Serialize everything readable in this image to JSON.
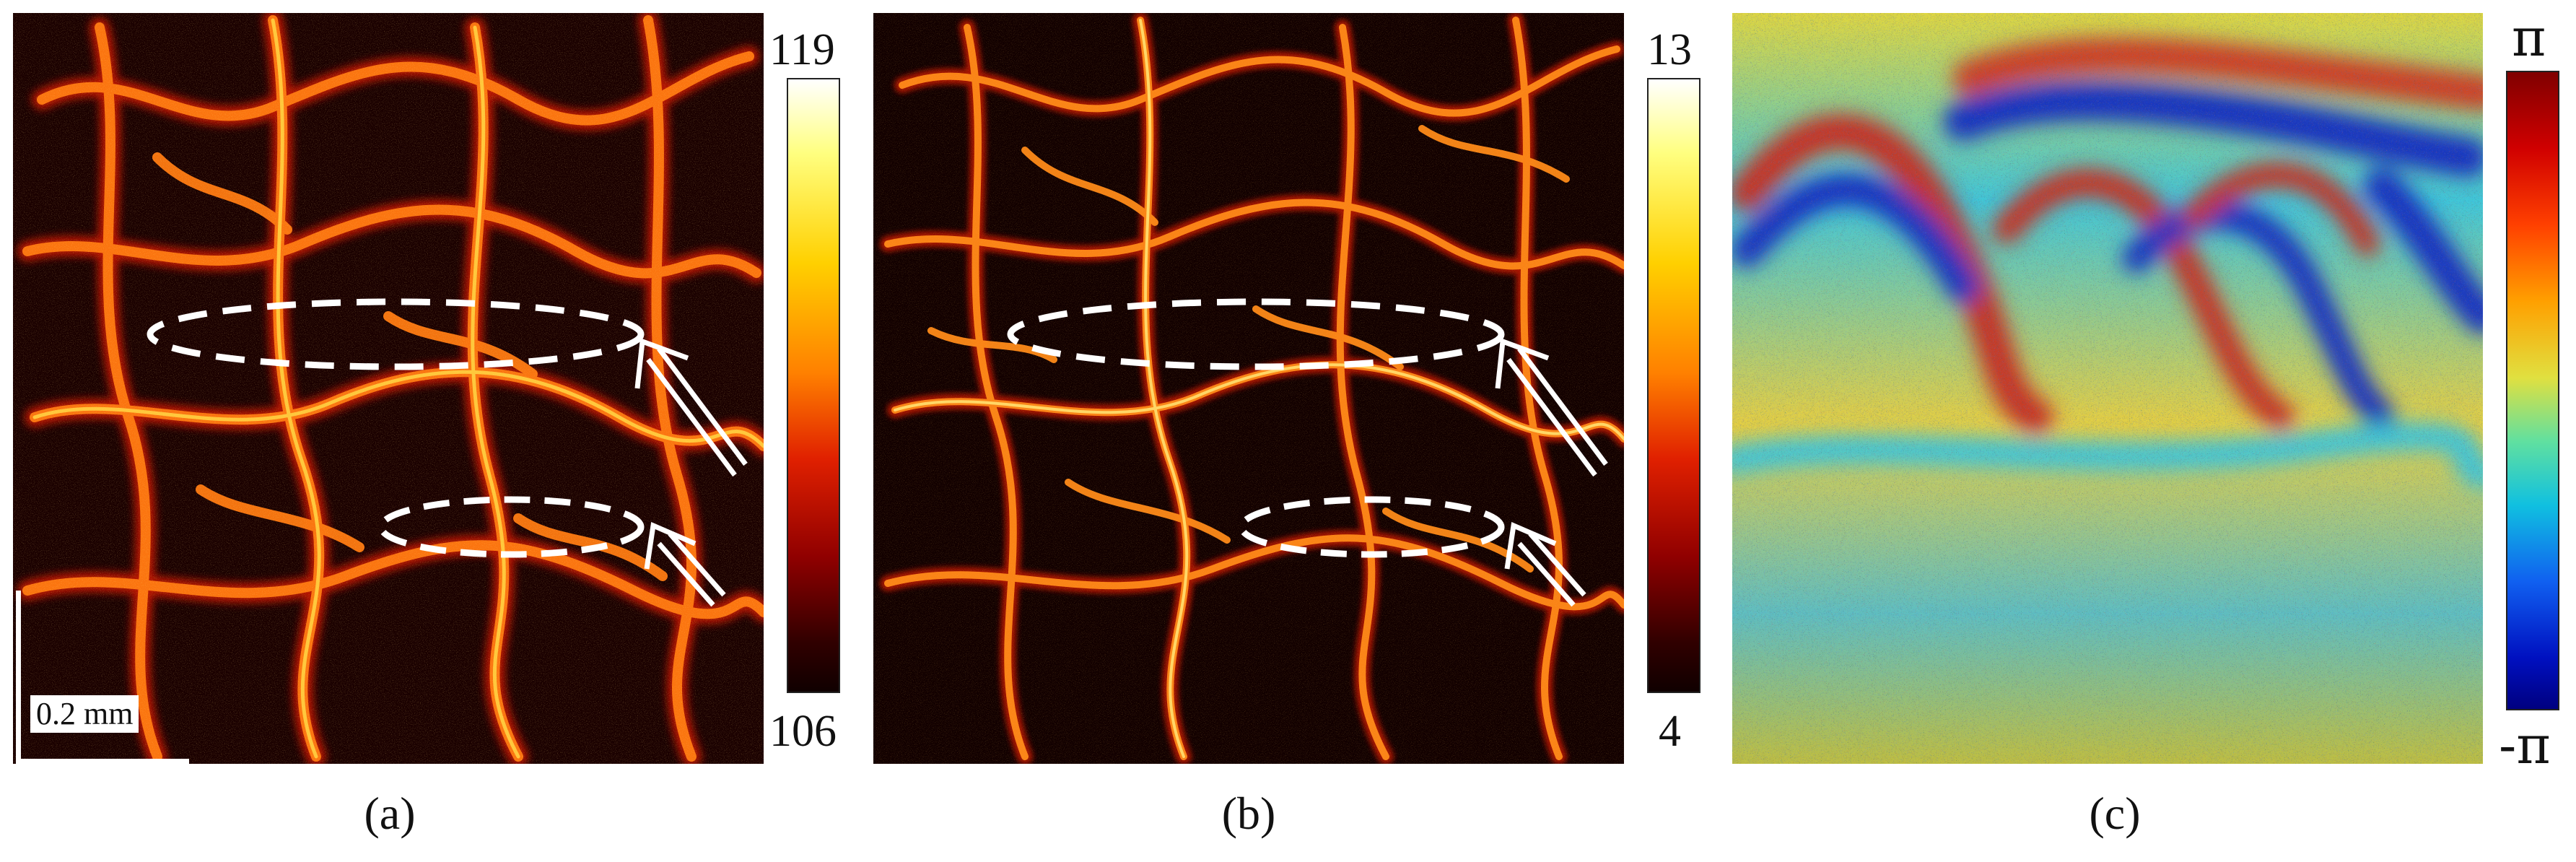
{
  "figure": {
    "panels": [
      {
        "id": "a",
        "caption": "(a)",
        "colormap": "hot",
        "colorbar": {
          "max_label": "119",
          "min_label": "106"
        },
        "scale_bar": {
          "label": "0.2 mm"
        },
        "annotations": [
          "dashed-ellipse-upper",
          "dashed-ellipse-lower",
          "arrow-upper",
          "arrow-lower"
        ]
      },
      {
        "id": "b",
        "caption": "(b)",
        "colormap": "hot",
        "colorbar": {
          "max_label": "13",
          "min_label": "4"
        },
        "annotations": [
          "dashed-ellipse-upper",
          "dashed-ellipse-lower",
          "arrow-upper",
          "arrow-lower"
        ]
      },
      {
        "id": "c",
        "caption": "(c)",
        "colormap": "jet",
        "colorbar": {
          "max_label": "π",
          "min_label": "-π"
        }
      }
    ],
    "colors": {
      "hot_dark": "#1a0000",
      "hot_red": "#b01000",
      "hot_orange": "#f06010",
      "hot_yellow": "#ffd040",
      "jet_blue": "#1030c8",
      "jet_cyan": "#30d0e0",
      "jet_yellow": "#f0e040",
      "jet_red": "#d02010",
      "annotation": "#ffffff"
    }
  }
}
